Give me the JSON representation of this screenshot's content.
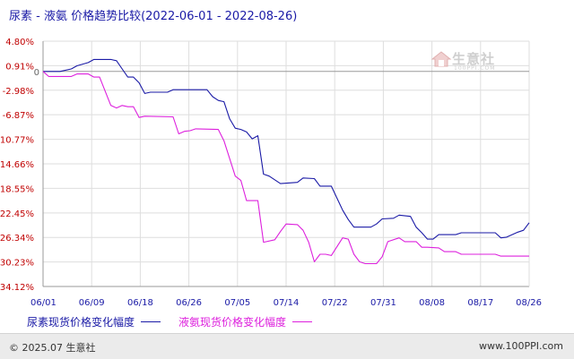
{
  "title": "尿素 - 液氨 价格趋势比较(2022-06-01 - 2022-08-26)",
  "watermark": {
    "text": "生意社",
    "sub": "100PPI.COM"
  },
  "footer": {
    "copyright": "© 2025.07 生意社",
    "site": "www.100PPI.com"
  },
  "colors": {
    "series1": "#1a1aa6",
    "series2": "#dd20dd",
    "axis_text": "#c00000",
    "date_text": "#1a1aa6"
  },
  "chart_data": {
    "type": "line",
    "title": "尿素 - 液氨 价格趋势比较(2022-06-01 - 2022-08-26)",
    "xlabel": "",
    "ylabel": "",
    "x_start": "2022-06-01",
    "x_end": "2022-08-26",
    "x_ticks": [
      "06/01",
      "06/09",
      "06/18",
      "06/26",
      "07/05",
      "07/14",
      "07/22",
      "07/31",
      "08/08",
      "08/17",
      "08/26"
    ],
    "y_ticks": [
      "4.80%",
      "0.91%",
      "-2.98%",
      "-6.87%",
      "-10.77%",
      "-14.66%",
      "-18.55%",
      "-22.45%",
      "-26.34%",
      "-30.23%",
      "-34.12%"
    ],
    "y_tick_values": [
      4.8,
      0.91,
      -2.98,
      -6.87,
      -10.77,
      -14.66,
      -18.55,
      -22.45,
      -26.34,
      -30.23,
      -34.12
    ],
    "ylim": [
      -34.12,
      4.8
    ],
    "grid": true,
    "legend_position": "bottom",
    "series": [
      {
        "name": "尿素现货价格变化幅度",
        "points": [
          [
            "2022-06-01",
            0
          ],
          [
            "2022-06-04",
            0
          ],
          [
            "2022-06-06",
            0.4
          ],
          [
            "2022-06-07",
            0.9
          ],
          [
            "2022-06-09",
            1.4
          ],
          [
            "2022-06-10",
            1.9
          ],
          [
            "2022-06-13",
            1.9
          ],
          [
            "2022-06-14",
            1.7
          ],
          [
            "2022-06-15",
            0.4
          ],
          [
            "2022-06-16",
            -0.9
          ],
          [
            "2022-06-17",
            -0.9
          ],
          [
            "2022-06-18",
            -1.8
          ],
          [
            "2022-06-19",
            -3.5
          ],
          [
            "2022-06-20",
            -3.3
          ],
          [
            "2022-06-23",
            -3.3
          ],
          [
            "2022-06-24",
            -2.9
          ],
          [
            "2022-06-30",
            -2.9
          ],
          [
            "2022-07-01",
            -4.0
          ],
          [
            "2022-07-02",
            -4.6
          ],
          [
            "2022-07-03",
            -4.8
          ],
          [
            "2022-07-04",
            -7.5
          ],
          [
            "2022-07-05",
            -9.0
          ],
          [
            "2022-07-06",
            -9.2
          ],
          [
            "2022-07-07",
            -9.6
          ],
          [
            "2022-07-08",
            -10.7
          ],
          [
            "2022-07-09",
            -10.2
          ],
          [
            "2022-07-10",
            -16.3
          ],
          [
            "2022-07-11",
            -16.6
          ],
          [
            "2022-07-13",
            -17.8
          ],
          [
            "2022-07-16",
            -17.6
          ],
          [
            "2022-07-17",
            -16.9
          ],
          [
            "2022-07-19",
            -17.0
          ],
          [
            "2022-07-20",
            -18.2
          ],
          [
            "2022-07-22",
            -18.2
          ],
          [
            "2022-07-24",
            -22.0
          ],
          [
            "2022-07-25",
            -23.5
          ],
          [
            "2022-07-26",
            -24.7
          ],
          [
            "2022-07-29",
            -24.7
          ],
          [
            "2022-07-30",
            -24.2
          ],
          [
            "2022-07-31",
            -23.4
          ],
          [
            "2022-08-02",
            -23.3
          ],
          [
            "2022-08-03",
            -22.8
          ],
          [
            "2022-08-05",
            -23.0
          ],
          [
            "2022-08-06",
            -24.7
          ],
          [
            "2022-08-07",
            -25.6
          ],
          [
            "2022-08-08",
            -26.6
          ],
          [
            "2022-08-09",
            -26.6
          ],
          [
            "2022-08-10",
            -25.9
          ],
          [
            "2022-08-11",
            -25.9
          ],
          [
            "2022-08-13",
            -25.9
          ],
          [
            "2022-08-14",
            -25.6
          ],
          [
            "2022-08-20",
            -25.6
          ],
          [
            "2022-08-21",
            -26.4
          ],
          [
            "2022-08-22",
            -26.3
          ],
          [
            "2022-08-24",
            -25.5
          ],
          [
            "2022-08-25",
            -25.2
          ],
          [
            "2022-08-26",
            -24.0
          ]
        ]
      },
      {
        "name": "液氨现货价格变化幅度",
        "points": [
          [
            "2022-06-01",
            0
          ],
          [
            "2022-06-02",
            -0.8
          ],
          [
            "2022-06-06",
            -0.8
          ],
          [
            "2022-06-07",
            -0.4
          ],
          [
            "2022-06-09",
            -0.4
          ],
          [
            "2022-06-10",
            -0.9
          ],
          [
            "2022-06-11",
            -0.9
          ],
          [
            "2022-06-13",
            -5.4
          ],
          [
            "2022-06-14",
            -5.8
          ],
          [
            "2022-06-15",
            -5.4
          ],
          [
            "2022-06-16",
            -5.6
          ],
          [
            "2022-06-17",
            -5.6
          ],
          [
            "2022-06-18",
            -7.3
          ],
          [
            "2022-06-19",
            -7.1
          ],
          [
            "2022-06-24",
            -7.2
          ],
          [
            "2022-06-25",
            -9.9
          ],
          [
            "2022-06-26",
            -9.5
          ],
          [
            "2022-06-27",
            -9.4
          ],
          [
            "2022-06-28",
            -9.1
          ],
          [
            "2022-07-02",
            -9.2
          ],
          [
            "2022-07-03",
            -11.0
          ],
          [
            "2022-07-04",
            -13.8
          ],
          [
            "2022-07-05",
            -16.6
          ],
          [
            "2022-07-06",
            -17.3
          ],
          [
            "2022-07-07",
            -20.5
          ],
          [
            "2022-07-09",
            -20.5
          ],
          [
            "2022-07-10",
            -27.1
          ],
          [
            "2022-07-12",
            -26.7
          ],
          [
            "2022-07-13",
            -25.4
          ],
          [
            "2022-07-14",
            -24.2
          ],
          [
            "2022-07-16",
            -24.3
          ],
          [
            "2022-07-17",
            -25.2
          ],
          [
            "2022-07-18",
            -27.1
          ],
          [
            "2022-07-19",
            -30.2
          ],
          [
            "2022-07-20",
            -29.0
          ],
          [
            "2022-07-21",
            -29.0
          ],
          [
            "2022-07-22",
            -29.2
          ],
          [
            "2022-07-24",
            -26.4
          ],
          [
            "2022-07-25",
            -26.6
          ],
          [
            "2022-07-26",
            -29.0
          ],
          [
            "2022-07-27",
            -30.2
          ],
          [
            "2022-07-28",
            -30.5
          ],
          [
            "2022-07-30",
            -30.5
          ],
          [
            "2022-07-31",
            -29.4
          ],
          [
            "2022-08-01",
            -27.0
          ],
          [
            "2022-08-03",
            -26.4
          ],
          [
            "2022-08-04",
            -27.0
          ],
          [
            "2022-08-06",
            -27.0
          ],
          [
            "2022-08-07",
            -27.9
          ],
          [
            "2022-08-08",
            -27.9
          ],
          [
            "2022-08-10",
            -28.0
          ],
          [
            "2022-08-11",
            -28.6
          ],
          [
            "2022-08-13",
            -28.6
          ],
          [
            "2022-08-14",
            -29.0
          ],
          [
            "2022-08-20",
            -29.0
          ],
          [
            "2022-08-21",
            -29.3
          ],
          [
            "2022-08-26",
            -29.3
          ]
        ]
      }
    ]
  }
}
